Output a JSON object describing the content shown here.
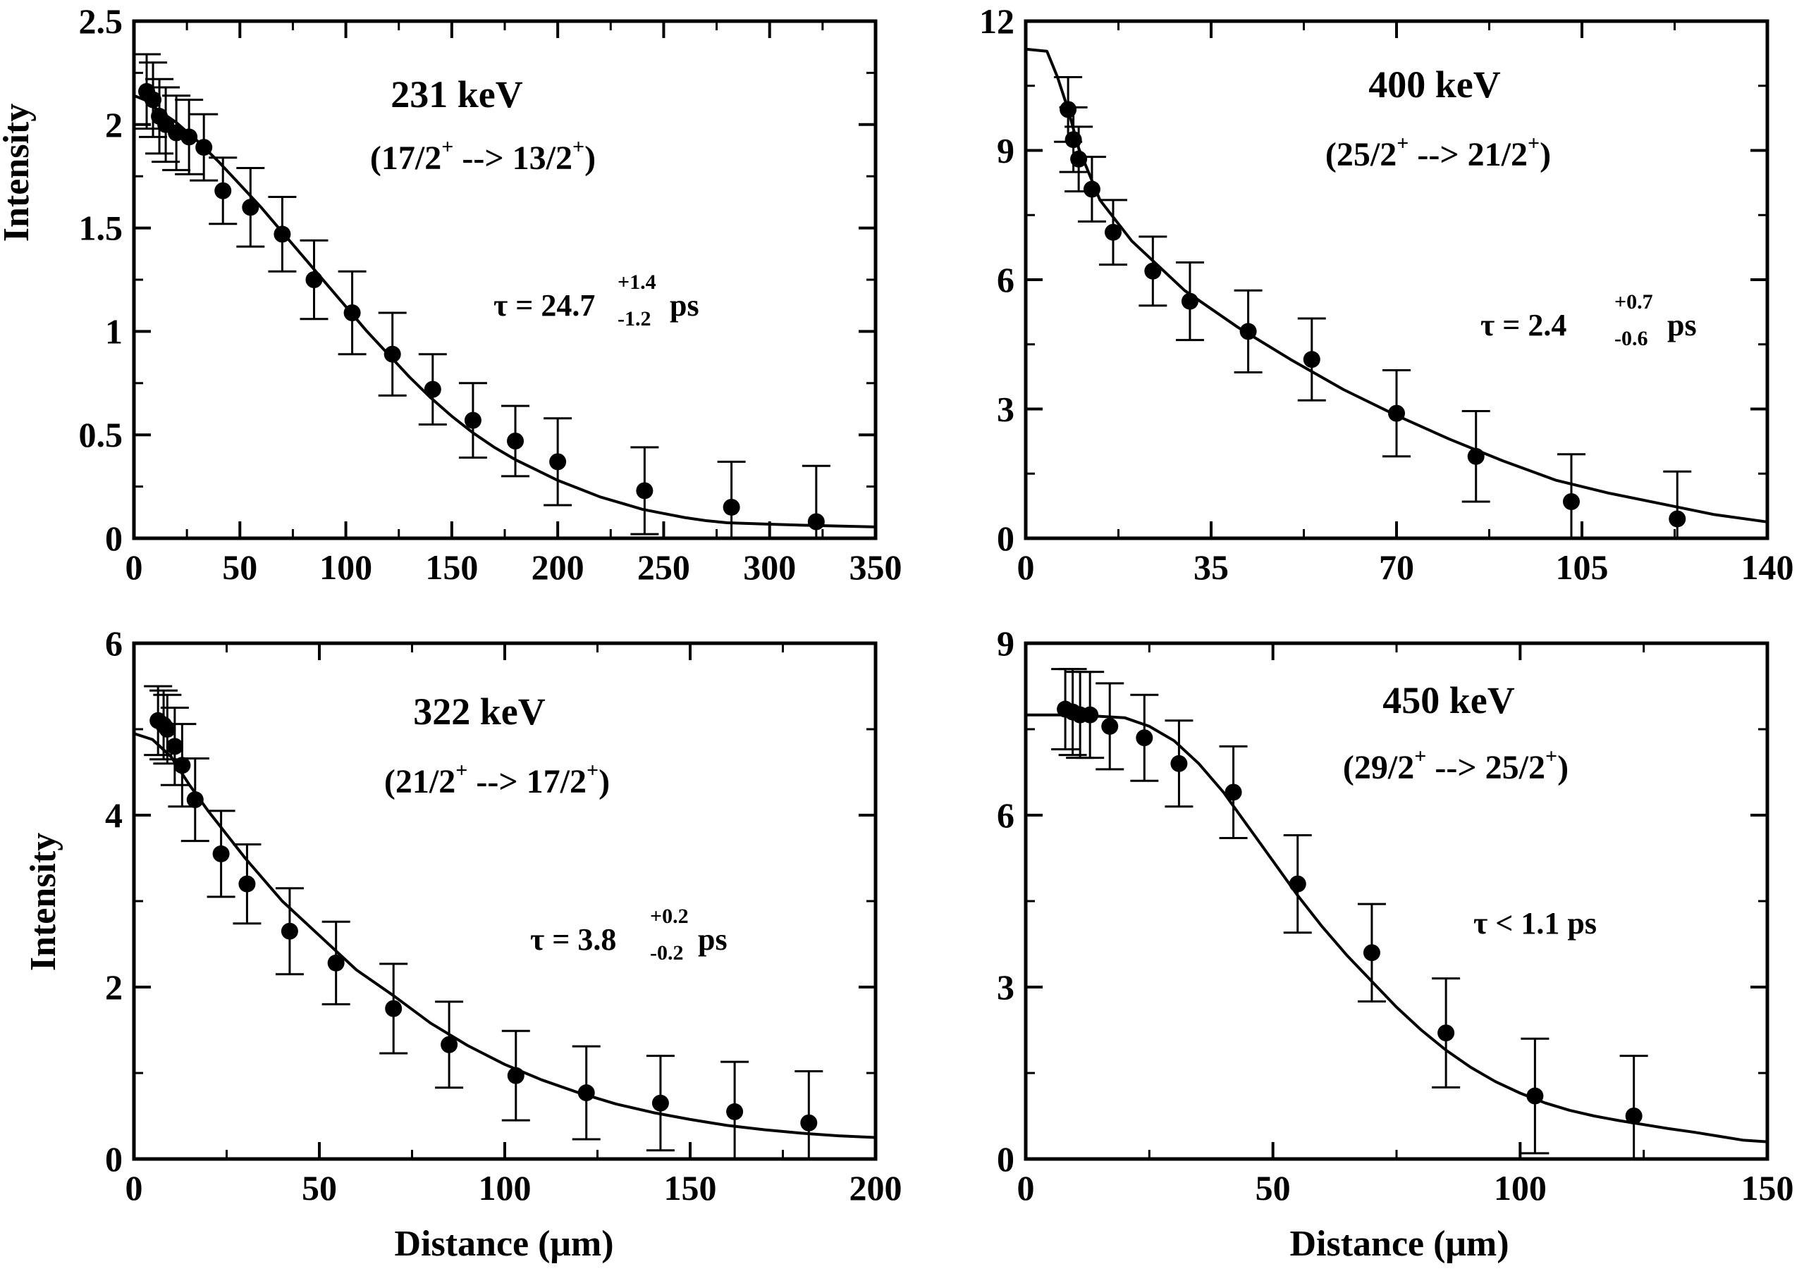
{
  "chart_data": [
    {
      "type": "scatter",
      "xlabel": "",
      "ylabel": "Intensity",
      "xlim": [
        0,
        350
      ],
      "ylim": [
        0,
        2.5
      ],
      "xticks": [
        "0",
        "50",
        "100",
        "150",
        "200",
        "250",
        "300",
        "350"
      ],
      "yticks": [
        "0",
        "0.5",
        "1",
        "1.5",
        "2",
        "2.5"
      ],
      "grid": false,
      "annotations": {
        "energy": "231 keV",
        "transition": "(17/2+ --> 13/2+)",
        "transition_parts": [
          "(17/2",
          "+",
          " --> 13/2",
          "+",
          ")"
        ],
        "tau": "τ = 24.7+1.4-1.2 ps",
        "tau_main": "τ = 24.7",
        "tau_plus": "+1.4",
        "tau_minus": "-1.2",
        "tau_unit": "ps"
      },
      "series": [
        {
          "x": [
            6,
            9,
            12,
            15,
            20,
            26,
            33,
            42,
            55,
            70,
            85,
            103,
            122,
            141,
            160,
            180,
            200,
            241,
            282,
            322
          ],
          "y": [
            2.16,
            2.12,
            2.04,
            2.0,
            1.96,
            1.94,
            1.89,
            1.68,
            1.6,
            1.47,
            1.25,
            1.09,
            0.89,
            0.72,
            0.57,
            0.47,
            0.37,
            0.23,
            0.15,
            0.08
          ],
          "yerr": [
            0.18,
            0.18,
            0.18,
            0.18,
            0.18,
            0.18,
            0.16,
            0.16,
            0.19,
            0.18,
            0.19,
            0.2,
            0.2,
            0.17,
            0.18,
            0.17,
            0.21,
            0.21,
            0.22,
            0.27
          ]
        },
        {
          "type": "line",
          "x": [
            0,
            5,
            10,
            20,
            30,
            40,
            50,
            60,
            70,
            80,
            90,
            100,
            110,
            120,
            130,
            140,
            150,
            160,
            170,
            180,
            190,
            200,
            210,
            220,
            230,
            240,
            250,
            260,
            270,
            280,
            300,
            320,
            350
          ],
          "y": [
            2.14,
            2.12,
            2.08,
            2.01,
            1.92,
            1.82,
            1.71,
            1.6,
            1.48,
            1.36,
            1.24,
            1.12,
            1.0,
            0.89,
            0.78,
            0.68,
            0.59,
            0.51,
            0.44,
            0.38,
            0.33,
            0.28,
            0.24,
            0.2,
            0.17,
            0.14,
            0.12,
            0.1,
            0.085,
            0.075,
            0.068,
            0.062,
            0.055
          ]
        }
      ]
    },
    {
      "type": "scatter",
      "xlabel": "",
      "ylabel": "",
      "xlim": [
        0,
        140
      ],
      "ylim": [
        0,
        12
      ],
      "xticks": [
        "0",
        "35",
        "70",
        "105",
        "140"
      ],
      "yticks": [
        "0",
        "3",
        "6",
        "9",
        "12"
      ],
      "grid": false,
      "annotations": {
        "energy": "400 keV",
        "transition": "(25/2+ --> 21/2+)",
        "transition_parts": [
          "(25/2",
          "+",
          " --> 21/2",
          "+",
          ")"
        ],
        "tau": "τ = 2.4+0.7-0.6 ps",
        "tau_main": "τ = 2.4",
        "tau_plus": "+0.7",
        "tau_minus": "-0.6",
        "tau_unit": "ps"
      },
      "series": [
        {
          "x": [
            8,
            9,
            10,
            12.5,
            16.5,
            24,
            31,
            42,
            54,
            70,
            85,
            103,
            123
          ],
          "y": [
            9.95,
            9.25,
            8.8,
            8.1,
            7.1,
            6.2,
            5.5,
            4.8,
            4.15,
            2.9,
            1.9,
            0.85,
            0.45
          ],
          "yerr": [
            0.75,
            0.75,
            0.75,
            0.75,
            0.75,
            0.8,
            0.9,
            0.95,
            0.95,
            1.0,
            1.05,
            1.1,
            1.1
          ]
        },
        {
          "type": "line",
          "x": [
            0,
            4,
            6,
            8,
            10,
            14,
            20,
            30,
            40,
            50,
            60,
            70,
            80,
            90,
            100,
            110,
            120,
            130,
            140
          ],
          "y": [
            11.35,
            11.3,
            10.7,
            9.95,
            9.05,
            7.85,
            6.9,
            5.75,
            4.9,
            4.15,
            3.45,
            2.85,
            2.3,
            1.8,
            1.35,
            1.05,
            0.8,
            0.55,
            0.38
          ]
        }
      ]
    },
    {
      "type": "scatter",
      "xlabel": "Distance (μm)",
      "ylabel": "Intensity",
      "xlim": [
        0,
        200
      ],
      "ylim": [
        0,
        6
      ],
      "xticks": [
        "0",
        "50",
        "100",
        "150",
        "200"
      ],
      "yticks": [
        "0",
        "2",
        "4",
        "6"
      ],
      "grid": false,
      "annotations": {
        "energy": "322 keV",
        "transition": "(21/2+ --> 17/2+)",
        "transition_parts": [
          "(21/2",
          "+",
          " --> 17/2",
          "+",
          ")"
        ],
        "tau": "τ = 3.8 +0.2-0.2ps",
        "tau_main": "τ = 3.8",
        "tau_plus": "+0.2",
        "tau_minus": "-0.2",
        "tau_unit": "ps"
      },
      "series": [
        {
          "x": [
            6.5,
            8,
            9,
            11,
            13,
            16.5,
            23.5,
            30.5,
            42,
            54.5,
            70,
            85,
            103,
            122,
            142,
            162,
            182
          ],
          "y": [
            5.1,
            5.05,
            5.0,
            4.8,
            4.58,
            4.18,
            3.55,
            3.2,
            2.65,
            2.28,
            1.75,
            1.33,
            0.97,
            0.77,
            0.65,
            0.55,
            0.42
          ],
          "yerr": [
            0.4,
            0.4,
            0.4,
            0.45,
            0.48,
            0.48,
            0.5,
            0.46,
            0.5,
            0.48,
            0.52,
            0.5,
            0.52,
            0.54,
            0.55,
            0.58,
            0.6
          ]
        },
        {
          "type": "line",
          "x": [
            0,
            5,
            10,
            15,
            20,
            30,
            40,
            50,
            60,
            70,
            80,
            90,
            100,
            110,
            120,
            130,
            140,
            150,
            160,
            170,
            180,
            190,
            200
          ],
          "y": [
            4.95,
            4.88,
            4.68,
            4.35,
            4.05,
            3.5,
            3.0,
            2.6,
            2.2,
            1.9,
            1.58,
            1.32,
            1.1,
            0.92,
            0.77,
            0.64,
            0.54,
            0.46,
            0.39,
            0.34,
            0.3,
            0.27,
            0.25
          ]
        }
      ]
    },
    {
      "type": "scatter",
      "xlabel": "Distance (μm)",
      "ylabel": "",
      "xlim": [
        0,
        150
      ],
      "ylim": [
        0,
        9
      ],
      "xticks": [
        "0",
        "50",
        "100",
        "150"
      ],
      "yticks": [
        "0",
        "3",
        "6",
        "9"
      ],
      "grid": false,
      "annotations": {
        "energy": "450 keV",
        "transition": "(29/2+ --> 25/2+)",
        "transition_parts": [
          "(29/2",
          "+",
          " --> 25/2",
          "+",
          ")"
        ],
        "tau": "τ < 1.1 ps"
      },
      "series": [
        {
          "x": [
            8,
            9.5,
            11,
            13,
            17,
            24,
            31,
            42,
            55,
            70,
            85,
            103,
            123
          ],
          "y": [
            7.85,
            7.8,
            7.75,
            7.75,
            7.55,
            7.35,
            6.9,
            6.4,
            4.8,
            3.6,
            2.2,
            1.1,
            0.75
          ],
          "yerr": [
            0.7,
            0.75,
            0.75,
            0.75,
            0.75,
            0.75,
            0.75,
            0.8,
            0.85,
            0.85,
            0.95,
            1.0,
            1.05
          ]
        },
        {
          "type": "line",
          "x": [
            0,
            10,
            20,
            25,
            30,
            35,
            40,
            45,
            50,
            55,
            60,
            65,
            70,
            75,
            80,
            85,
            90,
            95,
            100,
            105,
            110,
            115,
            120,
            125,
            130,
            135,
            140,
            145,
            150
          ],
          "y": [
            7.75,
            7.75,
            7.7,
            7.55,
            7.3,
            6.9,
            6.4,
            5.8,
            5.2,
            4.6,
            4.05,
            3.55,
            3.1,
            2.65,
            2.25,
            1.9,
            1.6,
            1.35,
            1.15,
            0.98,
            0.85,
            0.75,
            0.67,
            0.6,
            0.53,
            0.47,
            0.4,
            0.33,
            0.3
          ]
        }
      ]
    }
  ]
}
